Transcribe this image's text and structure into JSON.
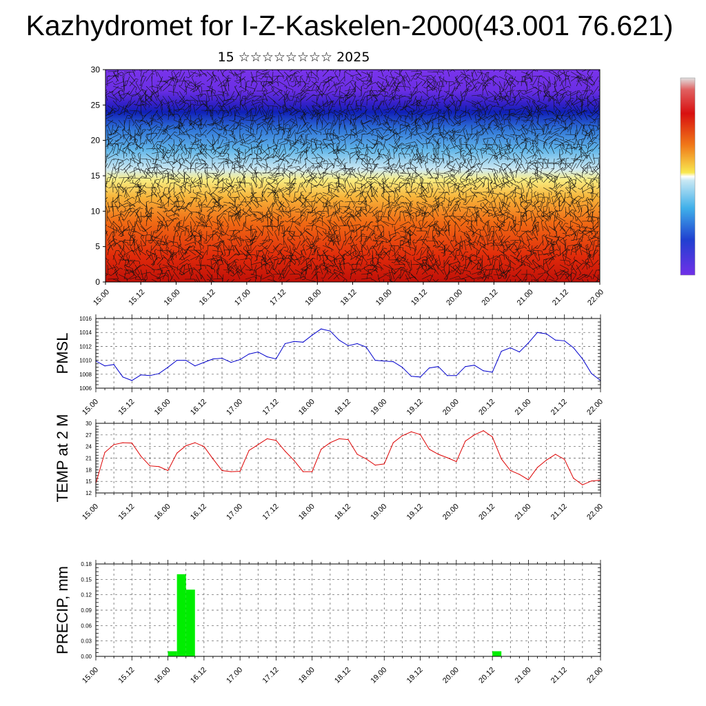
{
  "header": {
    "title": "Kazhydromet for I-Z-Kaskelen-2000(43.001 76.621)",
    "subtitle": "15 ☆☆☆☆☆☆☆☆ 2025"
  },
  "chart_data": [
    {
      "type": "heatmap",
      "description_of_field": "vertical cross-section with wind barbs",
      "ylim": [
        0,
        30
      ],
      "yticks": [
        "0",
        "5",
        "10",
        "15",
        "20",
        "25",
        "30"
      ],
      "xticks": [
        "15.00",
        "15.12",
        "16.00",
        "16.12",
        "17.00",
        "17.12",
        "18.00",
        "18.12",
        "19.00",
        "19.12",
        "20.00",
        "20.12",
        "21.00",
        "21.12",
        "22.00"
      ],
      "colormap": [
        "#d8d8d8",
        "#c81010",
        "#e8380a",
        "#f07818",
        "#f8c030",
        "#f8f070",
        "#c8e8f0",
        "#48b0e8",
        "#2060d0",
        "#2020c0",
        "#7030e8"
      ],
      "legend": "right, vertical colorbar"
    },
    {
      "type": "line",
      "ylabel": "PMSL",
      "ylim": [
        1006,
        1016
      ],
      "yticks": [
        "1006",
        "1008",
        "1010",
        "1012",
        "1014",
        "1016"
      ],
      "xticks": [
        "15.00",
        "15.12",
        "16.00",
        "16.12",
        "17.00",
        "17.12",
        "18.00",
        "18.12",
        "19.00",
        "19.12",
        "20.00",
        "20.12",
        "21.00",
        "21.12",
        "22.00"
      ],
      "xlim": [
        0,
        168
      ],
      "step_hours": 3,
      "color": "#0000cc",
      "values": [
        1009.9,
        1009.2,
        1009.4,
        1007.6,
        1007.1,
        1007.9,
        1007.8,
        1008.1,
        1009.0,
        1010.0,
        1010.0,
        1009.2,
        1009.7,
        1010.2,
        1010.3,
        1009.7,
        1010.1,
        1010.9,
        1011.2,
        1010.5,
        1010.2,
        1012.4,
        1012.7,
        1012.6,
        1013.6,
        1014.5,
        1014.2,
        1012.9,
        1012.1,
        1012.4,
        1011.9,
        1010.0,
        1009.9,
        1009.8,
        1009.0,
        1007.7,
        1007.6,
        1008.9,
        1009.1,
        1007.8,
        1007.8,
        1009.1,
        1009.3,
        1008.5,
        1008.3,
        1011.3,
        1011.8,
        1011.2,
        1012.5,
        1014.0,
        1013.8,
        1012.9,
        1012.8,
        1011.8,
        1010.2,
        1008.1,
        1007.1
      ],
      "grid": true
    },
    {
      "type": "line",
      "ylabel": "TEMP at 2 M",
      "ylim": [
        12,
        30
      ],
      "yticks": [
        "12",
        "15",
        "18",
        "21",
        "24",
        "27",
        "30"
      ],
      "xticks": [
        "15.00",
        "15.12",
        "16.00",
        "16.12",
        "17.00",
        "17.12",
        "18.00",
        "18.12",
        "19.00",
        "19.12",
        "20.00",
        "20.12",
        "21.00",
        "21.12",
        "22.00"
      ],
      "xlim": [
        0,
        168
      ],
      "step_hours": 3,
      "color": "#dd0000",
      "values": [
        14.5,
        22.5,
        24.5,
        25.0,
        24.9,
        21.5,
        19.0,
        18.8,
        17.8,
        22.3,
        24.2,
        25.0,
        24.0,
        20.8,
        17.8,
        17.5,
        17.6,
        23.0,
        24.5,
        26.0,
        25.6,
        22.8,
        20.4,
        17.5,
        17.5,
        23.3,
        25.0,
        26.0,
        25.8,
        22.0,
        20.8,
        19.2,
        19.5,
        25.0,
        26.8,
        27.8,
        27.1,
        23.3,
        22.0,
        21.1,
        20.1,
        25.4,
        27.0,
        28.1,
        26.5,
        20.8,
        17.8,
        16.8,
        15.4,
        18.6,
        20.5,
        22.0,
        20.7,
        15.8,
        14.1,
        15.1,
        15.3
      ],
      "grid": true
    },
    {
      "type": "bar",
      "ylabel": "PRECIP, mm",
      "ylim": [
        0,
        0.18
      ],
      "yticks": [
        "0.00",
        "0.03",
        "0.06",
        "0.09",
        "0.12",
        "0.15",
        "0.18"
      ],
      "xticks": [
        "15.00",
        "15.12",
        "16.00",
        "16.12",
        "17.00",
        "17.12",
        "18.00",
        "18.12",
        "19.00",
        "19.12",
        "20.00",
        "20.12",
        "21.00",
        "21.12",
        "22.00"
      ],
      "xlim": [
        0,
        168
      ],
      "color": "#00ee00",
      "bars": [
        {
          "start_hour": 24,
          "end_hour": 27,
          "value": 0.01
        },
        {
          "start_hour": 27,
          "end_hour": 30,
          "value": 0.16
        },
        {
          "start_hour": 30,
          "end_hour": 33,
          "value": 0.13
        },
        {
          "start_hour": 132,
          "end_hour": 135,
          "value": 0.01
        }
      ],
      "grid": true
    }
  ]
}
